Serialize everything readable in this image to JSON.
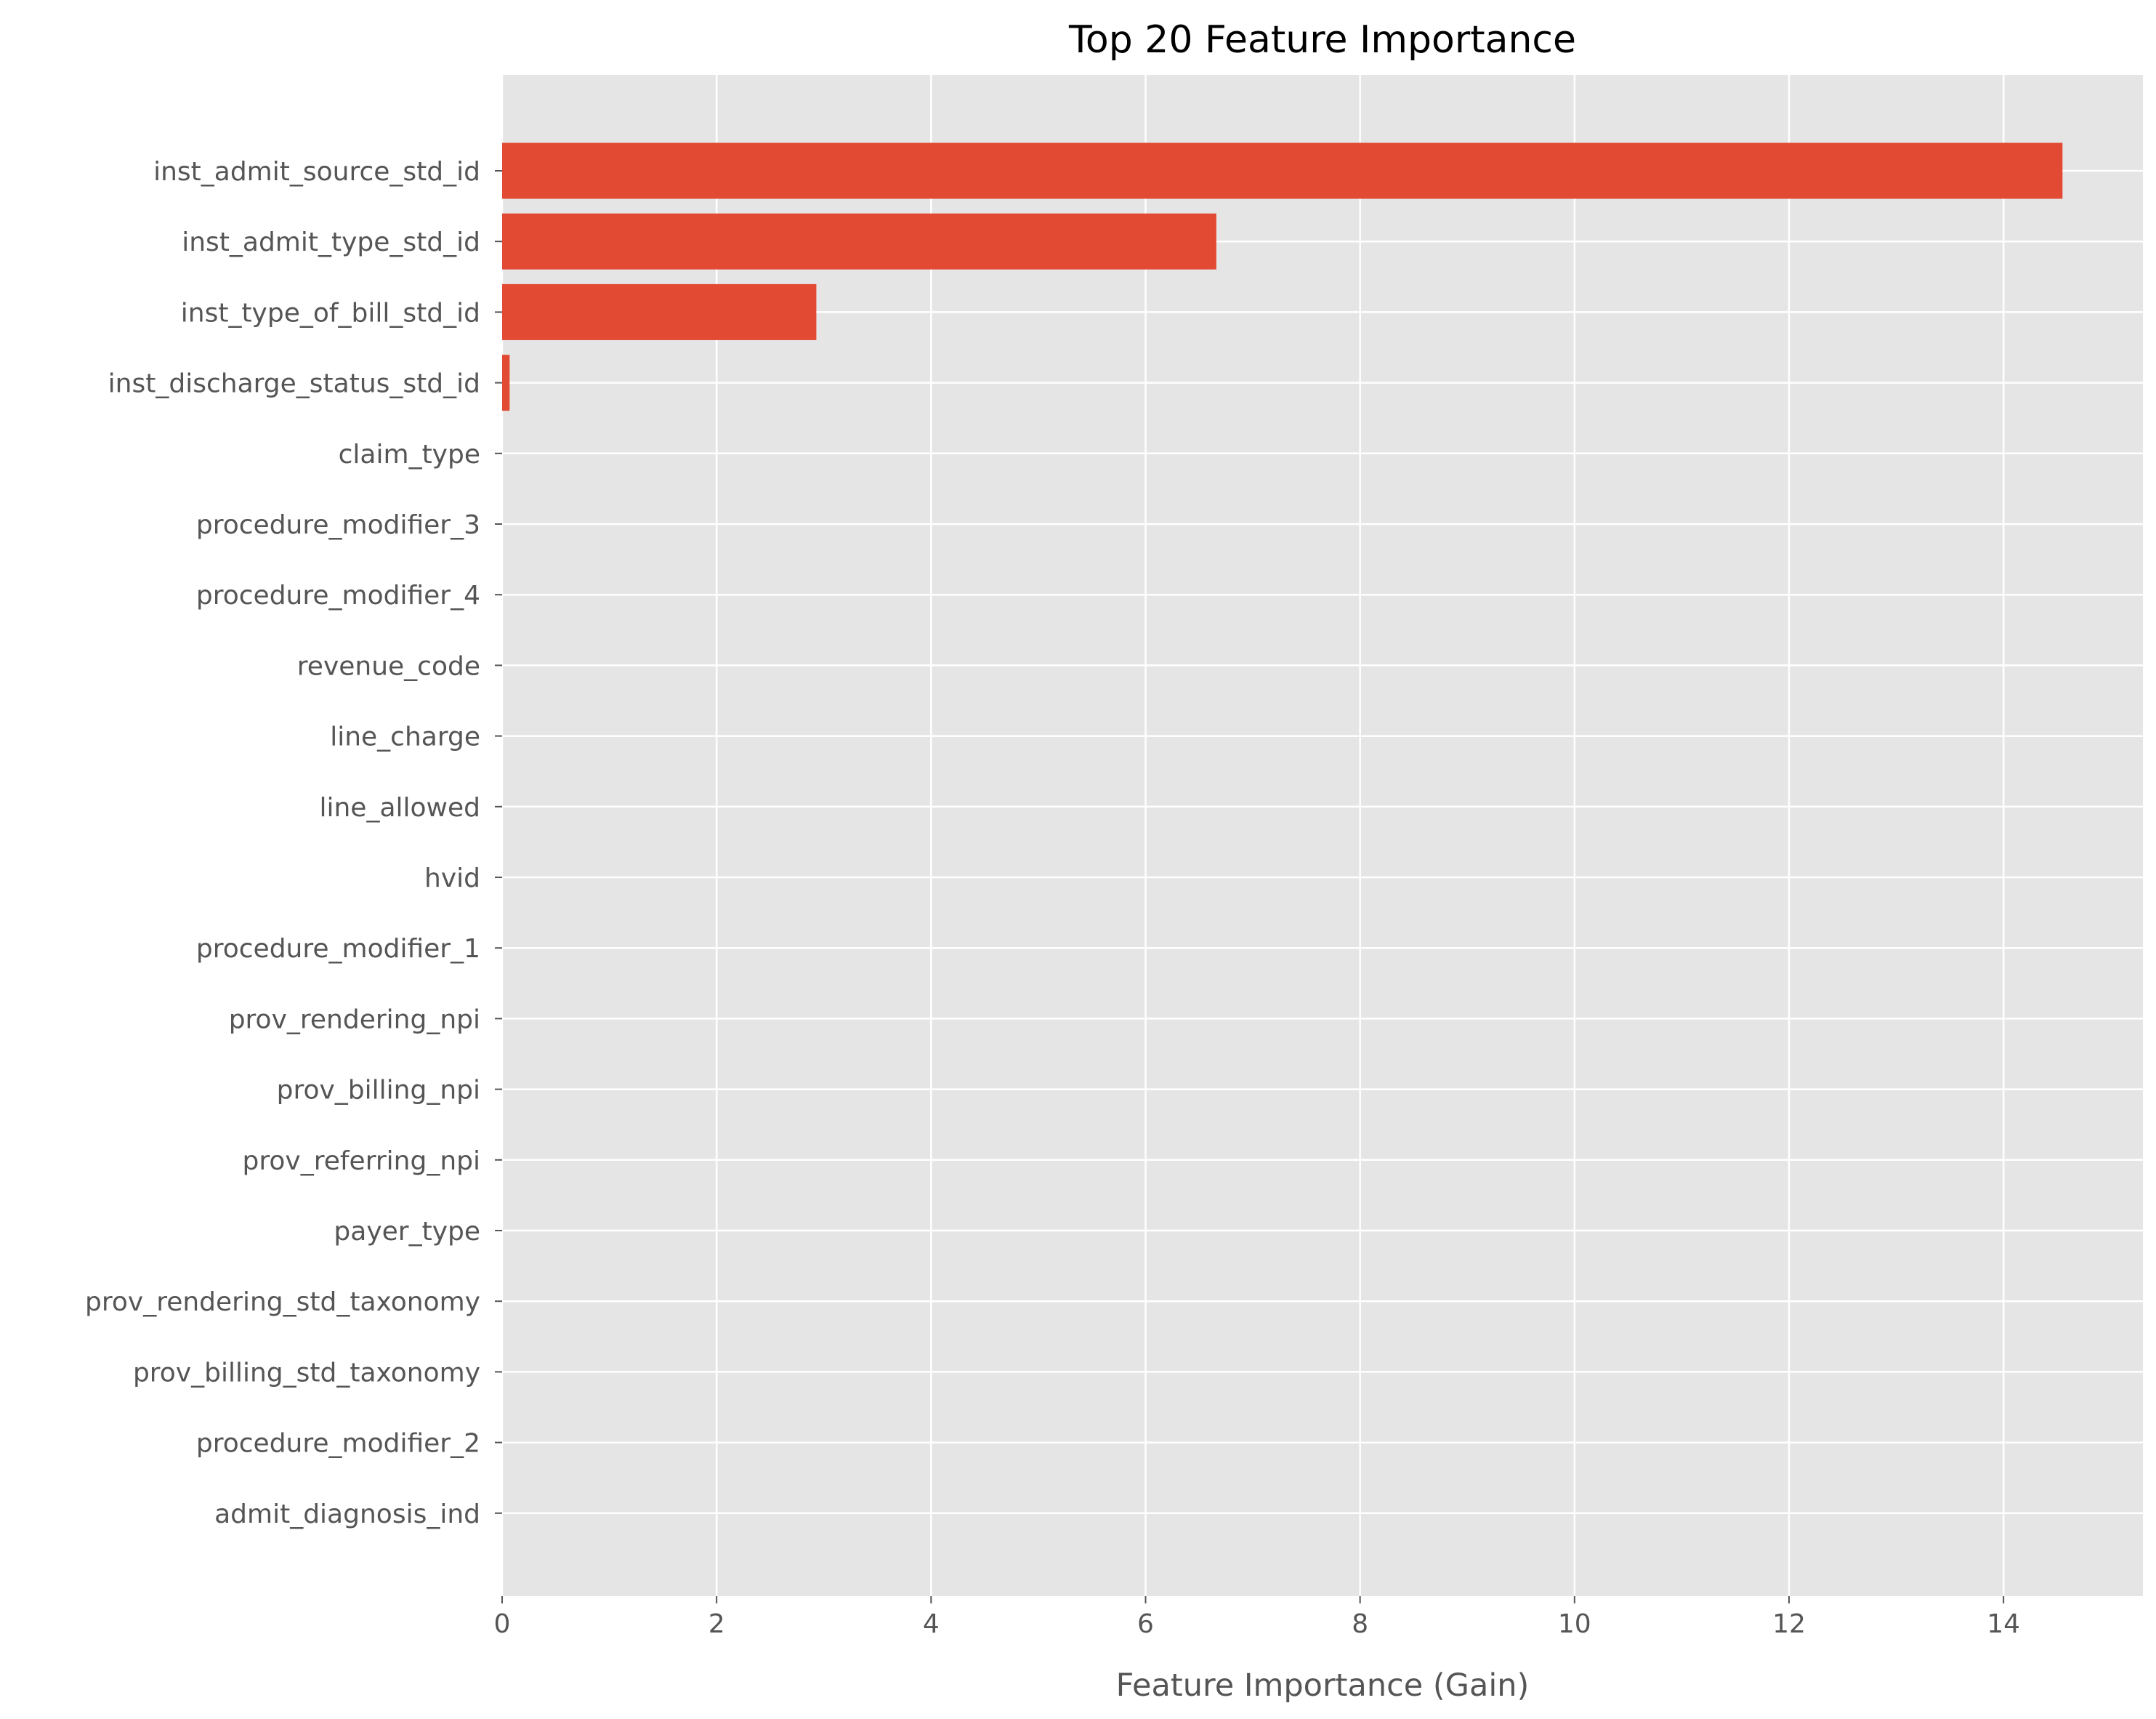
{
  "chart_data": {
    "type": "bar",
    "orientation": "horizontal",
    "title": "Top 20 Feature Importance",
    "xlabel": "Feature Importance (Gain)",
    "ylabel": "",
    "xlim": [
      0,
      15.3
    ],
    "xticks": [
      "0",
      "2",
      "4",
      "6",
      "8",
      "10",
      "12",
      "14"
    ],
    "grid": true,
    "legend": "none",
    "categories": [
      "inst_admit_source_std_id",
      "inst_admit_type_std_id",
      "inst_type_of_bill_std_id",
      "inst_discharge_status_std_id",
      "claim_type",
      "procedure_modifier_3",
      "procedure_modifier_4",
      "revenue_code",
      "line_charge",
      "line_allowed",
      "hvid",
      "procedure_modifier_1",
      "prov_rendering_npi",
      "prov_billing_npi",
      "prov_referring_npi",
      "payer_type",
      "prov_rendering_std_taxonomy",
      "prov_billing_std_taxonomy",
      "procedure_modifier_2",
      "admit_diagnosis_ind"
    ],
    "values": [
      14.55,
      6.66,
      2.93,
      0.07,
      0,
      0,
      0,
      0,
      0,
      0,
      0,
      0,
      0,
      0,
      0,
      0,
      0,
      0,
      0,
      0
    ],
    "colors": {
      "bar": "#E24A33",
      "plot_background": "#E5E5E5",
      "grid": "#FFFFFF",
      "text": "#555555",
      "title": "#000000"
    }
  }
}
